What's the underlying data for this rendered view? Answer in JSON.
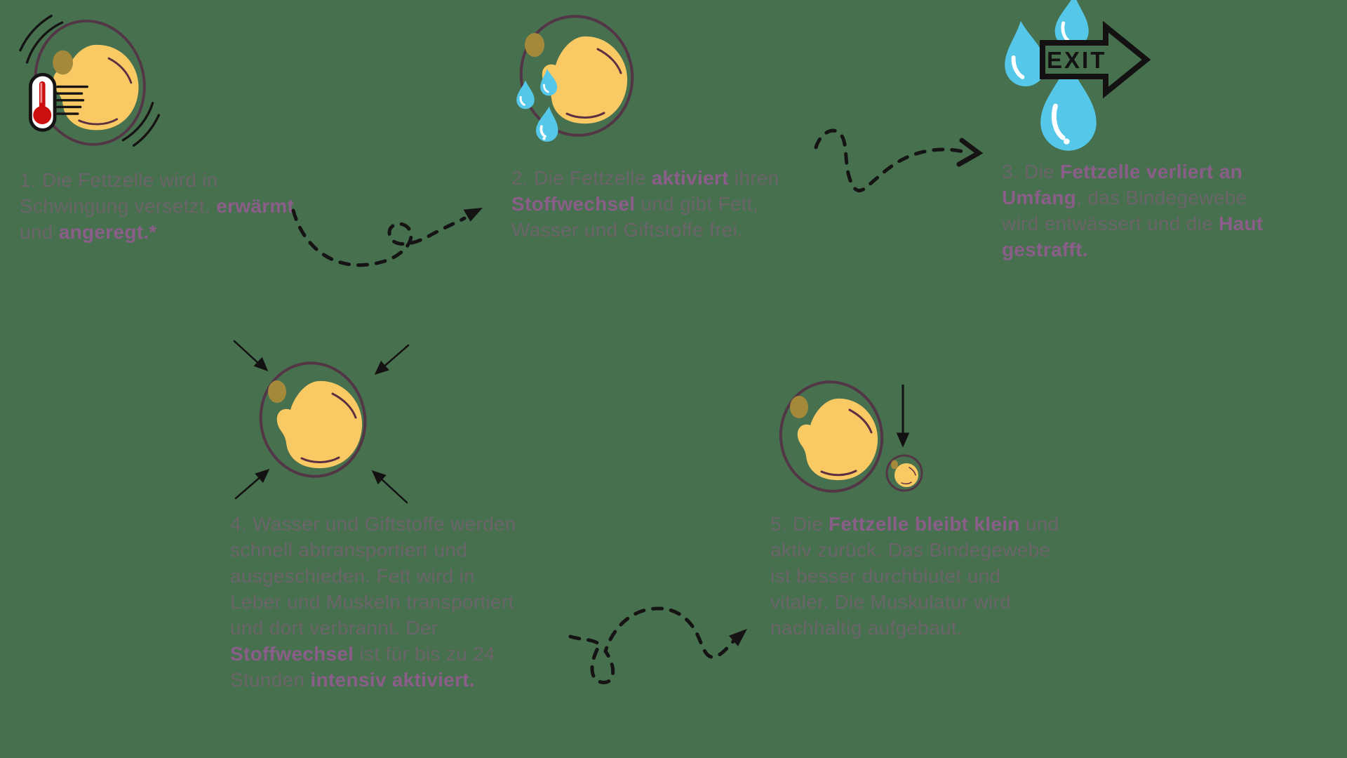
{
  "title": "Fettzelle Prozess Infografik",
  "exit": {
    "label": "EXIT"
  },
  "colors": {
    "background": "#47704f",
    "body_text": "#6b6468",
    "highlight_text": "#8a5e88",
    "cell_fill": "#f9c963",
    "cell_outline": "#533646",
    "cell_inner_arc": "#5d2f42",
    "nucleus": "#a5893a",
    "droplet": "#55c8ea",
    "droplet_highlight": "#ffffff",
    "thermometer_red": "#cb0e0e",
    "line_black": "#151313"
  },
  "steps": [
    {
      "number": "1",
      "icon": "vibrating-fat-cell-with-thermometer",
      "segments": [
        {
          "t": "1. Die Fettzelle wird in\nSchwingung versetzt, ",
          "h": false
        },
        {
          "t": "erwärmt",
          "h": true
        },
        {
          "t": "\nund ",
          "h": false
        },
        {
          "t": "angeregt.*",
          "h": true
        }
      ]
    },
    {
      "number": "2",
      "icon": "fat-cell-releasing-droplets",
      "segments": [
        {
          "t": "2. Die Fettzelle ",
          "h": false
        },
        {
          "t": "aktiviert",
          "h": true
        },
        {
          "t": " ihren\n",
          "h": false
        },
        {
          "t": "Stoffwechsel",
          "h": true
        },
        {
          "t": " und gibt Fett,\nWasser und Giftstoffe frei.",
          "h": false
        }
      ]
    },
    {
      "number": "3",
      "icon": "droplets-with-exit-arrow",
      "segments": [
        {
          "t": "3. Die ",
          "h": false
        },
        {
          "t": "Fettzelle verliert an\nUmfang",
          "h": true
        },
        {
          "t": ", das Bindegewebe\nwird entwässert und die ",
          "h": false
        },
        {
          "t": "Haut\ngestrafft.",
          "h": true
        }
      ]
    },
    {
      "number": "4",
      "icon": "fat-cell-compressed-by-arrows",
      "segments": [
        {
          "t": "4. Wasser und Giftstoffe werden\nschnell abtransportiert und\nausgeschieden. Fett wird in\nLeber und Muskeln transportiert\nund dort verbrannt. Der\n",
          "h": false
        },
        {
          "t": "Stoffwechsel",
          "h": true
        },
        {
          "t": " ist für bis zu 24\nStunden ",
          "h": false
        },
        {
          "t": "intensiv aktiviert.",
          "h": true
        }
      ]
    },
    {
      "number": "5",
      "icon": "large-and-shrunken-fat-cell",
      "segments": [
        {
          "t": "5. Die ",
          "h": false
        },
        {
          "t": "Fettzelle bleibt klein",
          "h": true
        },
        {
          "t": " und\naktiv zurück. Das Bindegewebe\nist besser durchblutet und\nvitaler. Die Muskulatur wird\nnachhaltig aufgebaut.",
          "h": false
        }
      ]
    }
  ],
  "connectors": [
    {
      "from": "1",
      "to": "2",
      "style": "dashed-loop-arrow"
    },
    {
      "from": "2",
      "to": "3",
      "style": "dashed-s-curve-arrow"
    },
    {
      "from": "4",
      "to": "5",
      "style": "dashed-loop-arrow"
    }
  ]
}
